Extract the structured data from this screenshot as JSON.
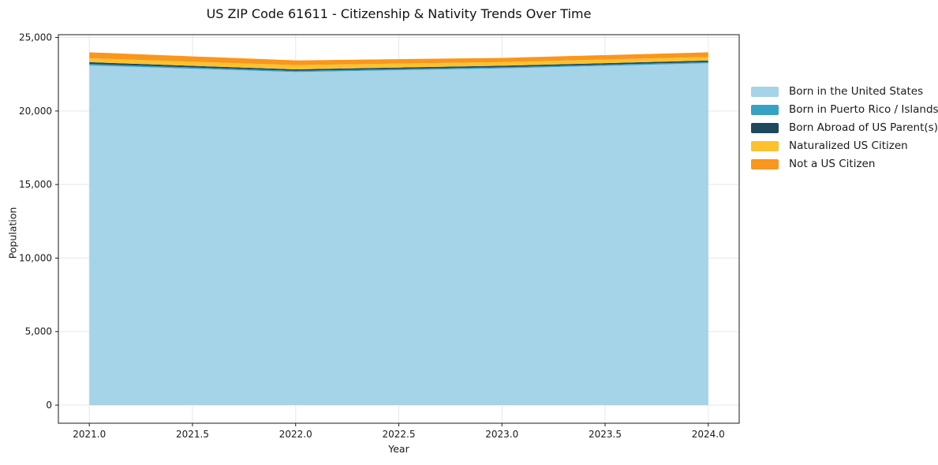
{
  "chart_data": {
    "type": "area",
    "stacked": true,
    "title": "US ZIP Code 61611 - Citizenship & Nativity Trends Over Time",
    "xlabel": "Year",
    "ylabel": "Population",
    "x": [
      2021,
      2022,
      2023,
      2024
    ],
    "series": [
      {
        "name": "Born in the United States",
        "color": "#a5d3e8",
        "values": [
          23100,
          22650,
          22900,
          23250
        ]
      },
      {
        "name": "Born in Puerto Rico / Islands",
        "color": "#38a2c4",
        "values": [
          100,
          80,
          80,
          80
        ]
      },
      {
        "name": "Born Abroad of US Parent(s)",
        "color": "#20485c",
        "values": [
          120,
          100,
          100,
          100
        ]
      },
      {
        "name": "Naturalized US Citizen",
        "color": "#fcc22d",
        "values": [
          270,
          290,
          250,
          240
        ]
      },
      {
        "name": "Not a US Citizen",
        "color": "#f8961e",
        "values": [
          400,
          320,
          280,
          320
        ]
      }
    ],
    "xlim": [
      2020.85,
      2024.15
    ],
    "ylim": [
      -1230,
      25190
    ],
    "xticks": {
      "values": [
        2021.0,
        2021.5,
        2022.0,
        2022.5,
        2023.0,
        2023.5,
        2024.0
      ],
      "labels": [
        "2021.0",
        "2021.5",
        "2022.0",
        "2022.5",
        "2023.0",
        "2023.5",
        "2024.0"
      ]
    },
    "yticks": {
      "values": [
        0,
        5000,
        10000,
        15000,
        20000,
        25000
      ],
      "labels": [
        "0",
        "5,000",
        "10,000",
        "15,000",
        "20,000",
        "25,000"
      ]
    },
    "grid": true,
    "grid_color": "#e7e7e7",
    "spine_color": "#1a1a1a",
    "legend_position": "right-outside"
  }
}
